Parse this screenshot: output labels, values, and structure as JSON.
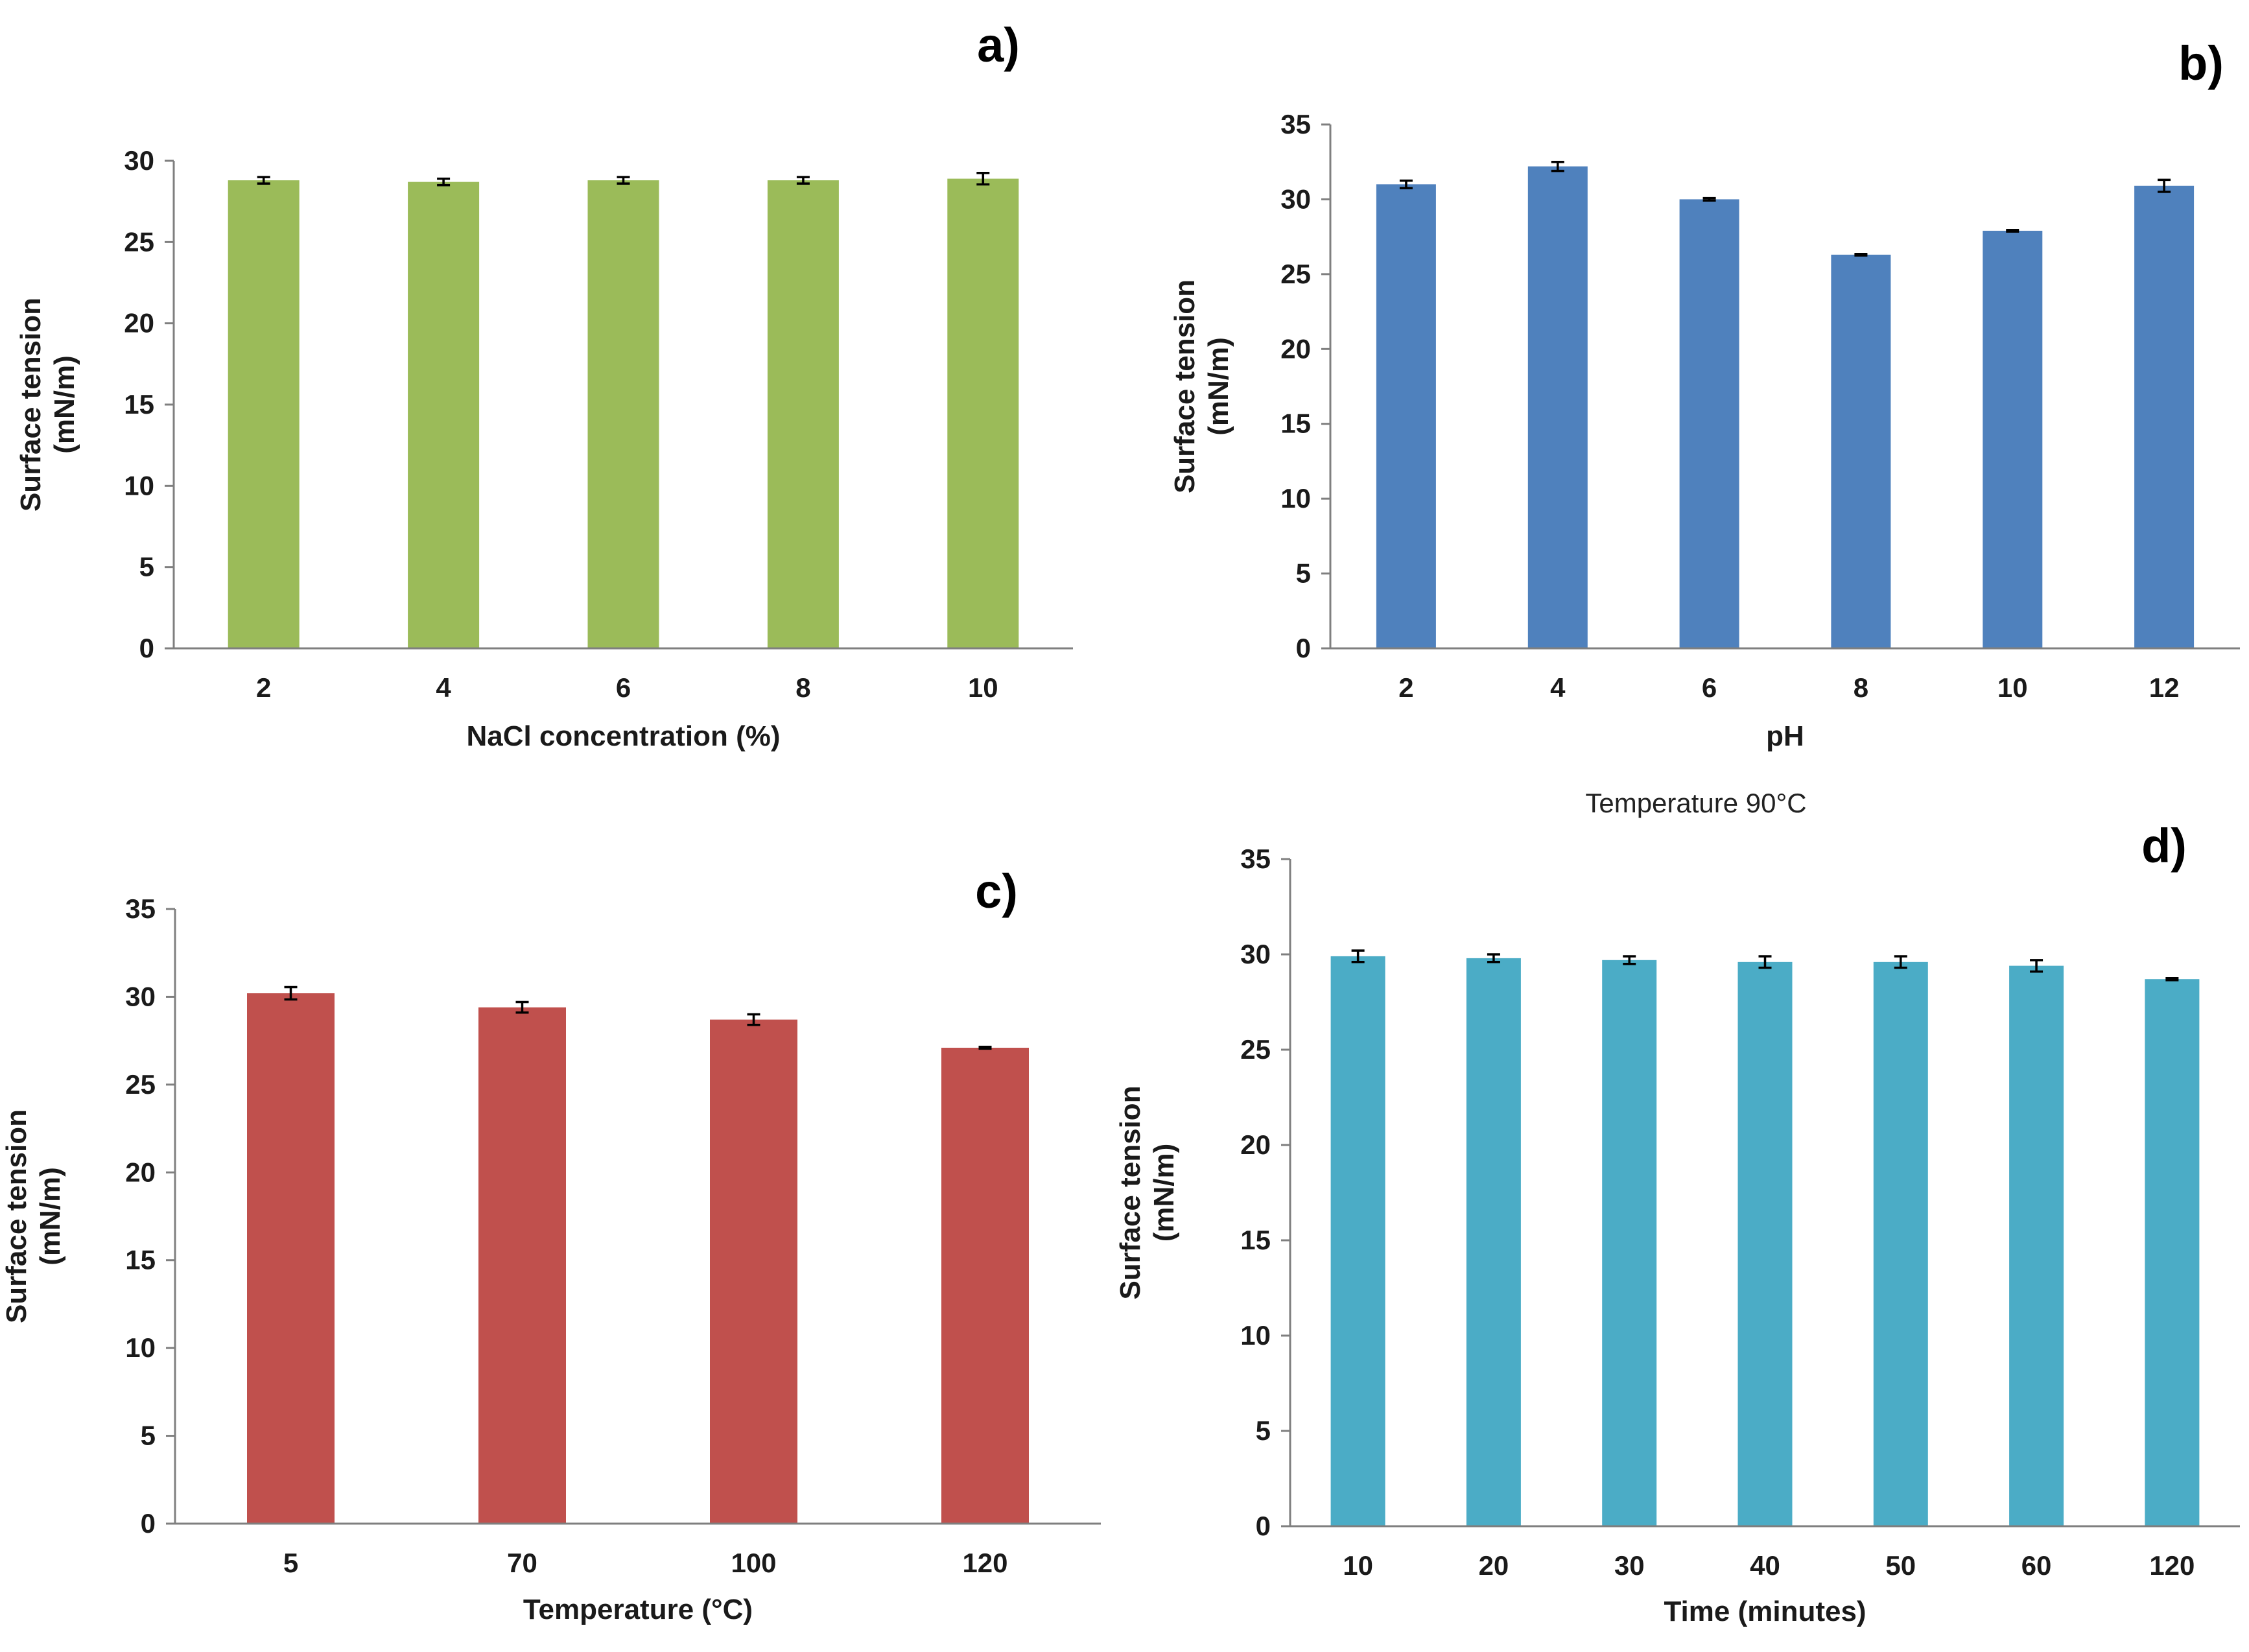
{
  "chart_data": [
    {
      "type": "bar",
      "panel_label": "a)",
      "title": "",
      "xlabel": "NaCl concentration (%)",
      "ylabel": [
        "Surface tension",
        "(mN/m)"
      ],
      "categories": [
        "2",
        "4",
        "6",
        "8",
        "10"
      ],
      "values": [
        28.8,
        28.7,
        28.8,
        28.8,
        28.9
      ],
      "errors": [
        0.2,
        0.2,
        0.2,
        0.2,
        0.35
      ],
      "ylim": [
        0,
        30
      ],
      "yticks": [
        0,
        5,
        10,
        15,
        20,
        25,
        30
      ],
      "color": "#9bbb59",
      "grid": false
    },
    {
      "type": "bar",
      "panel_label": "b)",
      "title": "",
      "xlabel": "pH",
      "ylabel": [
        "Surface tension",
        "(mN/m)"
      ],
      "categories": [
        "2",
        "4",
        "6",
        "8",
        "10",
        "12"
      ],
      "values": [
        31.0,
        32.2,
        30.0,
        26.3,
        27.9,
        30.9
      ],
      "errors": [
        0.25,
        0.3,
        0.08,
        0.05,
        0.05,
        0.4
      ],
      "ylim": [
        0,
        35
      ],
      "yticks": [
        0,
        5,
        10,
        15,
        20,
        25,
        30,
        35
      ],
      "color": "#4f81bd",
      "grid": false
    },
    {
      "type": "bar",
      "panel_label": "c)",
      "title": "",
      "xlabel": "Temperature (°C)",
      "ylabel": [
        "Surface tension",
        "(mN/m)"
      ],
      "categories": [
        "5",
        "70",
        "100",
        "120"
      ],
      "values": [
        30.2,
        29.4,
        28.7,
        27.1
      ],
      "errors": [
        0.35,
        0.3,
        0.3,
        0.05
      ],
      "ylim": [
        0,
        35
      ],
      "yticks": [
        0,
        5,
        10,
        15,
        20,
        25,
        30,
        35
      ],
      "color": "#c0504d",
      "grid": false
    },
    {
      "type": "bar",
      "panel_label": "d)",
      "title": "Temperature 90°C",
      "xlabel": "Time (minutes)",
      "ylabel": [
        "Surface tension",
        "(mN/m)"
      ],
      "categories": [
        "10",
        "20",
        "30",
        "40",
        "50",
        "60",
        "120"
      ],
      "values": [
        29.9,
        29.8,
        29.7,
        29.6,
        29.6,
        29.4,
        28.7
      ],
      "errors": [
        0.3,
        0.2,
        0.2,
        0.3,
        0.3,
        0.3,
        0.05
      ],
      "ylim": [
        0,
        35
      ],
      "yticks": [
        0,
        5,
        10,
        15,
        20,
        25,
        30,
        35
      ],
      "color": "#4bacc6",
      "grid": false
    }
  ]
}
